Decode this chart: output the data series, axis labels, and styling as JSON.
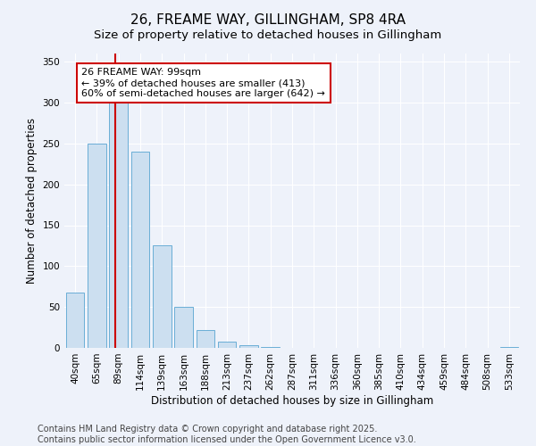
{
  "title": "26, FREAME WAY, GILLINGHAM, SP8 4RA",
  "subtitle": "Size of property relative to detached houses in Gillingham",
  "xlabel": "Distribution of detached houses by size in Gillingham",
  "ylabel": "Number of detached properties",
  "categories": [
    "40sqm",
    "65sqm",
    "89sqm",
    "114sqm",
    "139sqm",
    "163sqm",
    "188sqm",
    "213sqm",
    "237sqm",
    "262sqm",
    "287sqm",
    "311sqm",
    "336sqm",
    "360sqm",
    "385sqm",
    "410sqm",
    "434sqm",
    "459sqm",
    "484sqm",
    "508sqm",
    "533sqm"
  ],
  "values": [
    68,
    250,
    310,
    240,
    125,
    50,
    22,
    8,
    3,
    1,
    0,
    0,
    0,
    0,
    0,
    0,
    0,
    0,
    0,
    0,
    1
  ],
  "bar_color": "#ccdff0",
  "bar_edge_color": "#6aaed6",
  "annotation_line1": "26 FREAME WAY: 99sqm",
  "annotation_line2": "← 39% of detached houses are smaller (413)",
  "annotation_line3": "60% of semi-detached houses are larger (642) →",
  "annotation_box_color": "#ffffff",
  "annotation_box_edge_color": "#cc0000",
  "vline_color": "#cc0000",
  "vline_x": 2.0,
  "ylim": [
    0,
    360
  ],
  "yticks": [
    0,
    50,
    100,
    150,
    200,
    250,
    300,
    350
  ],
  "background_color": "#eef2fa",
  "grid_color": "#ffffff",
  "footer_line1": "Contains HM Land Registry data © Crown copyright and database right 2025.",
  "footer_line2": "Contains public sector information licensed under the Open Government Licence v3.0.",
  "title_fontsize": 11,
  "subtitle_fontsize": 9.5,
  "axis_label_fontsize": 8.5,
  "tick_fontsize": 7.5,
  "annotation_fontsize": 8,
  "footer_fontsize": 7
}
